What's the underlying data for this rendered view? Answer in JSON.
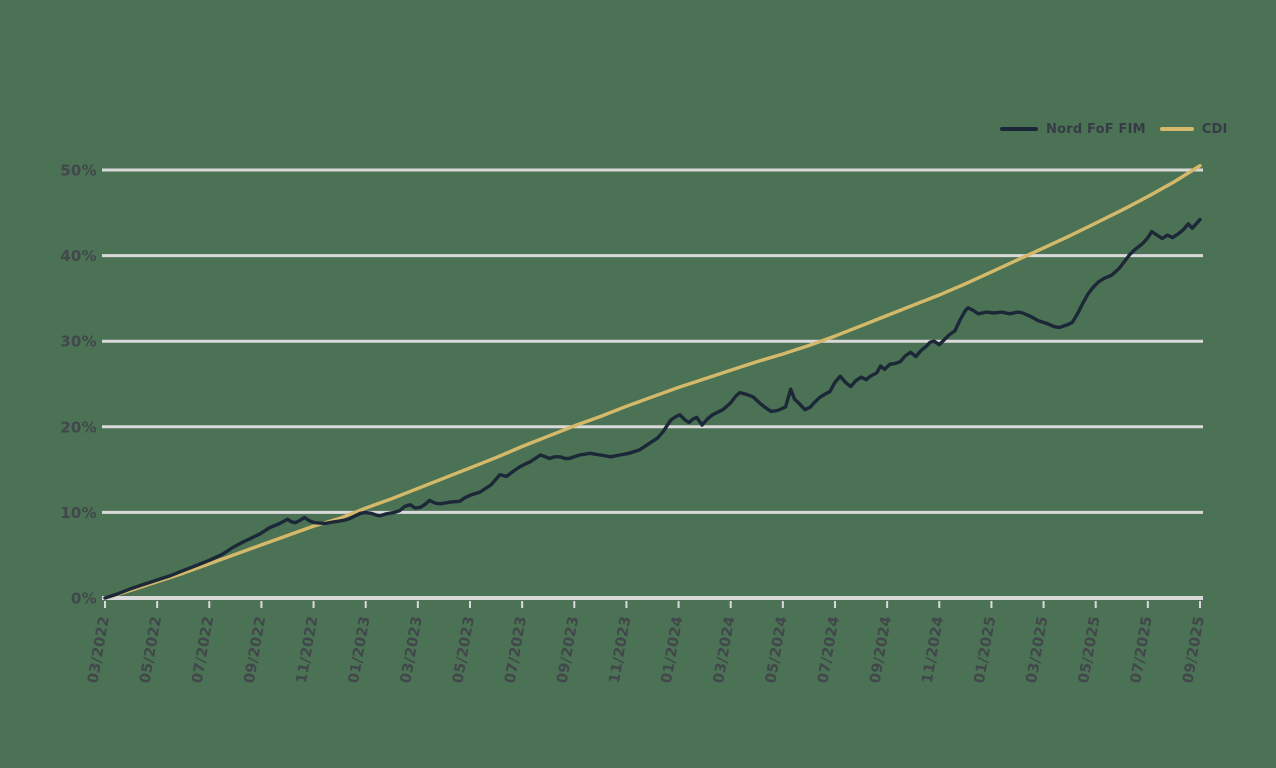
{
  "colors": {
    "background": "#4b7254",
    "gridline": "#d9d9d9",
    "axis_text": "#42474b",
    "legend_text": "#363c45",
    "nord_line": "#1c2838",
    "cdi_line": "#d5b96b"
  },
  "legend": {
    "nord_label": "Nord FoF FIM",
    "cdi_label": "CDI"
  },
  "chart_data": {
    "type": "line",
    "title": "",
    "xlabel": "",
    "ylabel": "",
    "grid": "horizontal",
    "legend_position": "top-right",
    "ylim": [
      0,
      50
    ],
    "y_tick_labels": [
      "0%",
      "10%",
      "20%",
      "30%",
      "40%",
      "50%"
    ],
    "y_tick_values": [
      0,
      10,
      20,
      30,
      40,
      50
    ],
    "x_tick_labels": [
      "03/2022",
      "05/2022",
      "07/2022",
      "09/2022",
      "11/2022",
      "01/2023",
      "03/2023",
      "05/2023",
      "07/2023",
      "09/2023",
      "11/2023",
      "01/2024",
      "03/2024",
      "05/2024",
      "07/2024",
      "09/2024",
      "11/2024",
      "01/2025",
      "03/2025",
      "05/2025",
      "07/2025",
      "09/2025"
    ],
    "x_tick_month_step": 2,
    "x_months_range": [
      0,
      42
    ],
    "series": [
      {
        "name": "Nord FoF FIM",
        "color": "#1c2838",
        "unit": "%",
        "points": [
          [
            0,
            0
          ],
          [
            0.5,
            0.5
          ],
          [
            1,
            1.1
          ],
          [
            1.5,
            1.6
          ],
          [
            2,
            2.1
          ],
          [
            2.5,
            2.6
          ],
          [
            3,
            3.2
          ],
          [
            3.5,
            3.8
          ],
          [
            4,
            4.4
          ],
          [
            4.5,
            5.1
          ],
          [
            4.9,
            5.9
          ],
          [
            5.2,
            6.4
          ],
          [
            5.55,
            6.9
          ],
          [
            5.95,
            7.5
          ],
          [
            6.3,
            8.2
          ],
          [
            6.7,
            8.7
          ],
          [
            7,
            9.2
          ],
          [
            7.15,
            8.9
          ],
          [
            7.3,
            8.8
          ],
          [
            7.5,
            9.1
          ],
          [
            7.65,
            9.4
          ],
          [
            7.85,
            9
          ],
          [
            8.05,
            8.8
          ],
          [
            8.25,
            8.75
          ],
          [
            8.45,
            8.7
          ],
          [
            8.6,
            8.8
          ],
          [
            8.8,
            8.9
          ],
          [
            9,
            9
          ],
          [
            9.2,
            9.1
          ],
          [
            9.4,
            9.3
          ],
          [
            9.6,
            9.6
          ],
          [
            9.8,
            9.9
          ],
          [
            10,
            10
          ],
          [
            10.2,
            9.9
          ],
          [
            10.4,
            9.7
          ],
          [
            10.55,
            9.6
          ],
          [
            10.75,
            9.8
          ],
          [
            10.9,
            9.9
          ],
          [
            11.1,
            10
          ],
          [
            11.3,
            10.2
          ],
          [
            11.5,
            10.7
          ],
          [
            11.7,
            10.9
          ],
          [
            11.9,
            10.5
          ],
          [
            12.1,
            10.6
          ],
          [
            12.3,
            11
          ],
          [
            12.45,
            11.4
          ],
          [
            12.65,
            11.1
          ],
          [
            12.85,
            11
          ],
          [
            13.05,
            11.1
          ],
          [
            13.25,
            11.2
          ],
          [
            13.6,
            11.3
          ],
          [
            13.8,
            11.7
          ],
          [
            14,
            12
          ],
          [
            14.2,
            12.2
          ],
          [
            14.4,
            12.4
          ],
          [
            14.6,
            12.8
          ],
          [
            14.8,
            13.2
          ],
          [
            15,
            13.9
          ],
          [
            15.15,
            14.4
          ],
          [
            15.4,
            14.2
          ],
          [
            15.7,
            14.9
          ],
          [
            15.9,
            15.3
          ],
          [
            16.15,
            15.7
          ],
          [
            16.3,
            15.9
          ],
          [
            16.5,
            16.3
          ],
          [
            16.7,
            16.7
          ],
          [
            16.9,
            16.5
          ],
          [
            17.05,
            16.3
          ],
          [
            17.25,
            16.5
          ],
          [
            17.45,
            16.5
          ],
          [
            17.65,
            16.3
          ],
          [
            17.8,
            16.3
          ],
          [
            18,
            16.5
          ],
          [
            18.2,
            16.7
          ],
          [
            18.4,
            16.8
          ],
          [
            18.6,
            16.9
          ],
          [
            18.8,
            16.8
          ],
          [
            19,
            16.7
          ],
          [
            19.4,
            16.5
          ],
          [
            19.75,
            16.7
          ],
          [
            20.1,
            16.9
          ],
          [
            20.5,
            17.3
          ],
          [
            20.9,
            18.1
          ],
          [
            21.2,
            18.7
          ],
          [
            21.4,
            19.4
          ],
          [
            21.7,
            20.8
          ],
          [
            21.9,
            21.2
          ],
          [
            22.05,
            21.4
          ],
          [
            22.25,
            20.8
          ],
          [
            22.4,
            20.5
          ],
          [
            22.55,
            20.9
          ],
          [
            22.7,
            21.1
          ],
          [
            22.9,
            20.2
          ],
          [
            23.1,
            20.9
          ],
          [
            23.3,
            21.4
          ],
          [
            23.5,
            21.7
          ],
          [
            23.7,
            22
          ],
          [
            24,
            22.8
          ],
          [
            24.2,
            23.6
          ],
          [
            24.35,
            24
          ],
          [
            24.6,
            23.8
          ],
          [
            24.85,
            23.5
          ],
          [
            25.1,
            22.8
          ],
          [
            25.3,
            22.3
          ],
          [
            25.55,
            21.8
          ],
          [
            25.8,
            21.9
          ],
          [
            26.1,
            22.3
          ],
          [
            26.3,
            24.4
          ],
          [
            26.45,
            23.2
          ],
          [
            26.6,
            22.8
          ],
          [
            26.85,
            22
          ],
          [
            27.05,
            22.3
          ],
          [
            27.2,
            22.8
          ],
          [
            27.4,
            23.4
          ],
          [
            27.6,
            23.8
          ],
          [
            27.8,
            24.1
          ],
          [
            28,
            25.2
          ],
          [
            28.2,
            25.9
          ],
          [
            28.4,
            25.2
          ],
          [
            28.6,
            24.7
          ],
          [
            28.8,
            25.4
          ],
          [
            29,
            25.8
          ],
          [
            29.2,
            25.5
          ],
          [
            29.35,
            25.9
          ],
          [
            29.6,
            26.3
          ],
          [
            29.75,
            27.1
          ],
          [
            29.9,
            26.7
          ],
          [
            30.1,
            27.3
          ],
          [
            30.3,
            27.4
          ],
          [
            30.5,
            27.6
          ],
          [
            30.7,
            28.3
          ],
          [
            30.9,
            28.7
          ],
          [
            31.1,
            28.2
          ],
          [
            31.3,
            28.9
          ],
          [
            31.5,
            29.4
          ],
          [
            31.65,
            29.9
          ],
          [
            31.8,
            30
          ],
          [
            32,
            29.6
          ],
          [
            32.2,
            30.2
          ],
          [
            32.4,
            30.8
          ],
          [
            32.6,
            31.2
          ],
          [
            32.8,
            32.5
          ],
          [
            33,
            33.6
          ],
          [
            33.1,
            33.9
          ],
          [
            33.3,
            33.6
          ],
          [
            33.5,
            33.2
          ],
          [
            33.8,
            33.4
          ],
          [
            34.1,
            33.3
          ],
          [
            34.4,
            33.4
          ],
          [
            34.7,
            33.2
          ],
          [
            35,
            33.4
          ],
          [
            35.2,
            33.3
          ],
          [
            35.5,
            32.9
          ],
          [
            35.8,
            32.4
          ],
          [
            36.1,
            32.1
          ],
          [
            36.4,
            31.7
          ],
          [
            36.6,
            31.6
          ],
          [
            36.9,
            31.9
          ],
          [
            37.1,
            32.2
          ],
          [
            37.3,
            33.2
          ],
          [
            37.5,
            34.4
          ],
          [
            37.7,
            35.5
          ],
          [
            37.9,
            36.3
          ],
          [
            38.1,
            36.9
          ],
          [
            38.3,
            37.3
          ],
          [
            38.6,
            37.7
          ],
          [
            38.9,
            38.5
          ],
          [
            39.1,
            39.3
          ],
          [
            39.3,
            40.1
          ],
          [
            39.5,
            40.7
          ],
          [
            39.8,
            41.4
          ],
          [
            40,
            42.1
          ],
          [
            40.15,
            42.8
          ],
          [
            40.35,
            42.4
          ],
          [
            40.55,
            42
          ],
          [
            40.75,
            42.4
          ],
          [
            40.95,
            42.1
          ],
          [
            41.15,
            42.5
          ],
          [
            41.35,
            43
          ],
          [
            41.55,
            43.7
          ],
          [
            41.7,
            43.2
          ],
          [
            41.85,
            43.7
          ],
          [
            42,
            44.2
          ]
        ]
      },
      {
        "name": "CDI",
        "color": "#d5b96b",
        "unit": "%",
        "points": [
          [
            0,
            0
          ],
          [
            1,
            0.9
          ],
          [
            2,
            1.9
          ],
          [
            3,
            2.9
          ],
          [
            4,
            4
          ],
          [
            5,
            5.1
          ],
          [
            6,
            6.2
          ],
          [
            7,
            7.3
          ],
          [
            8,
            8.4
          ],
          [
            9,
            9.3
          ],
          [
            10,
            10.5
          ],
          [
            11,
            11.6
          ],
          [
            12,
            12.8
          ],
          [
            13,
            14
          ],
          [
            14,
            15.2
          ],
          [
            15,
            16.4
          ],
          [
            16,
            17.7
          ],
          [
            17,
            18.9
          ],
          [
            18,
            20.1
          ],
          [
            19,
            21.2
          ],
          [
            20,
            22.4
          ],
          [
            21,
            23.5
          ],
          [
            22,
            24.6
          ],
          [
            23,
            25.6
          ],
          [
            24,
            26.6
          ],
          [
            25,
            27.6
          ],
          [
            26,
            28.5
          ],
          [
            27,
            29.5
          ],
          [
            28,
            30.6
          ],
          [
            29,
            31.8
          ],
          [
            30,
            33
          ],
          [
            31,
            34.2
          ],
          [
            32,
            35.4
          ],
          [
            33,
            36.7
          ],
          [
            34,
            38.1
          ],
          [
            35,
            39.5
          ],
          [
            36,
            40.9
          ],
          [
            37,
            42.3
          ],
          [
            38,
            43.8
          ],
          [
            39,
            45.3
          ],
          [
            40,
            46.9
          ],
          [
            41,
            48.6
          ],
          [
            42,
            50.5
          ]
        ]
      }
    ]
  }
}
